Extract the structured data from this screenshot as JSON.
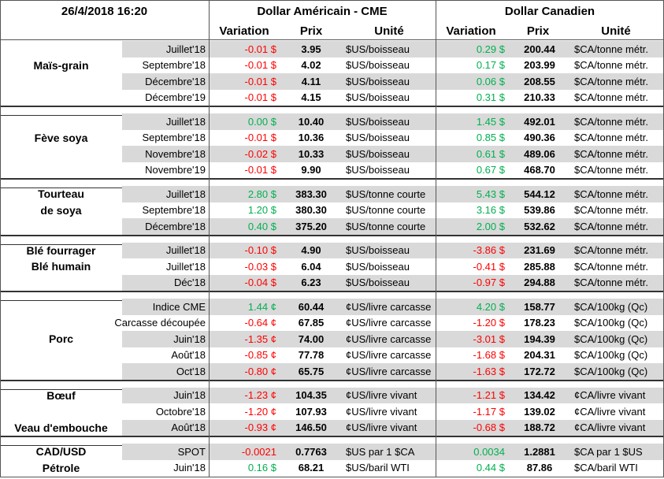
{
  "header": {
    "date": "26/4/2018 16:20",
    "usd_title": "Dollar Américain - CME",
    "cad_title": "Dollar Canadien",
    "usd_columns": [
      "Variation",
      "Prix",
      "Unité"
    ],
    "cad_columns": [
      "Variation",
      "Prix",
      "Unité"
    ]
  },
  "positive_color": "#00b050",
  "negative_color": "#ff0000",
  "groups": [
    {
      "rows": [
        {
          "cells": [
            "Juillet'18",
            "-0.01 $",
            "3.95",
            "$US/boisseau",
            "0.29 $",
            "200.44",
            "$CA/tonne métr."
          ]
        },
        {
          "label": "Maïs-grain",
          "cells": [
            "Septembre'18",
            "-0.01 $",
            "4.02",
            "$US/boisseau",
            "0.17 $",
            "203.99",
            "$CA/tonne métr."
          ]
        },
        {
          "cells": [
            "Décembre'18",
            "-0.01 $",
            "4.11",
            "$US/boisseau",
            "0.06 $",
            "208.55",
            "$CA/tonne métr."
          ]
        },
        {
          "cells": [
            "Décembre'19",
            "-0.01 $",
            "4.15",
            "$US/boisseau",
            "0.31 $",
            "210.33",
            "$CA/tonne métr."
          ]
        }
      ]
    },
    {
      "rows": [
        {
          "cells": [
            "Juillet'18",
            "0.00 $",
            "10.40",
            "$US/boisseau",
            "1.45 $",
            "492.01",
            "$CA/tonne métr."
          ]
        },
        {
          "label": "Fève soya",
          "cells": [
            "Septembre'18",
            "-0.01 $",
            "10.36",
            "$US/boisseau",
            "0.85 $",
            "490.36",
            "$CA/tonne métr."
          ]
        },
        {
          "cells": [
            "Novembre'18",
            "-0.02 $",
            "10.33",
            "$US/boisseau",
            "0.61 $",
            "489.06",
            "$CA/tonne métr."
          ]
        },
        {
          "cells": [
            "Novembre'19",
            "-0.01 $",
            "9.90",
            "$US/boisseau",
            "0.67 $",
            "468.70",
            "$CA/tonne métr."
          ]
        }
      ]
    },
    {
      "rows": [
        {
          "label": "Tourteau",
          "cells": [
            "Juillet'18",
            "2.80 $",
            "383.30",
            "$US/tonne courte",
            "5.43 $",
            "544.12",
            "$CA/tonne métr."
          ]
        },
        {
          "label": "de soya",
          "cells": [
            "Septembre'18",
            "1.20 $",
            "380.30",
            "$US/tonne courte",
            "3.16 $",
            "539.86",
            "$CA/tonne métr."
          ]
        },
        {
          "cells": [
            "Décembre'18",
            "0.40 $",
            "375.20",
            "$US/tonne courte",
            "2.00 $",
            "532.62",
            "$CA/tonne métr."
          ]
        }
      ]
    },
    {
      "rows": [
        {
          "label": "Blé fourrager",
          "cells": [
            "Juillet'18",
            "-0.10 $",
            "4.90",
            "$US/boisseau",
            "-3.86 $",
            "231.69",
            "$CA/tonne métr."
          ]
        },
        {
          "label": "Blé humain",
          "cells": [
            "Juillet'18",
            "-0.03 $",
            "6.04",
            "$US/boisseau",
            "-0.41 $",
            "285.88",
            "$CA/tonne métr."
          ]
        },
        {
          "cells": [
            "Déc'18",
            "-0.04 $",
            "6.23",
            "$US/boisseau",
            "-0.97 $",
            "294.88",
            "$CA/tonne métr."
          ]
        }
      ]
    },
    {
      "rows": [
        {
          "cells": [
            "Indice CME",
            "1.44 ¢",
            "60.44",
            "¢US/livre carcasse",
            "4.20 $",
            "158.77",
            "$CA/100kg (Qc)"
          ]
        },
        {
          "cells": [
            "Carcasse découpée",
            "-0.64 ¢",
            "67.85",
            "¢US/livre carcasse",
            "-1.20 $",
            "178.23",
            "$CA/100kg (Qc)"
          ]
        },
        {
          "label": "Porc",
          "cells": [
            "Juin'18",
            "-1.35 ¢",
            "74.00",
            "¢US/livre carcasse",
            "-3.01 $",
            "194.39",
            "$CA/100kg (Qc)"
          ]
        },
        {
          "cells": [
            "Août'18",
            "-0.85 ¢",
            "77.78",
            "¢US/livre carcasse",
            "-1.68 $",
            "204.31",
            "$CA/100kg (Qc)"
          ]
        },
        {
          "cells": [
            "Oct'18",
            "-0.80 ¢",
            "65.75",
            "¢US/livre carcasse",
            "-1.63 $",
            "172.72",
            "$CA/100kg (Qc)"
          ]
        }
      ]
    },
    {
      "rows": [
        {
          "label": "Bœuf",
          "cells": [
            "Juin'18",
            "-1.23 ¢",
            "104.35",
            "¢US/livre vivant",
            "-1.21 $",
            "134.42",
            "¢CA/livre vivant"
          ]
        },
        {
          "cells": [
            "Octobre'18",
            "-1.20 ¢",
            "107.93",
            "¢US/livre vivant",
            "-1.17 $",
            "139.02",
            "¢CA/livre vivant"
          ]
        },
        {
          "label": "Veau d'embouche",
          "cells": [
            "Août'18",
            "-0.93 ¢",
            "146.50",
            "¢US/livre vivant",
            "-0.68 $",
            "188.72",
            "¢CA/livre vivant"
          ]
        }
      ]
    },
    {
      "rows": [
        {
          "label": "CAD/USD",
          "cells": [
            "SPOT",
            "-0.0021",
            "0.7763",
            "$US par 1 $CA",
            "0.0034",
            "1.2881",
            "$CA par 1 $US"
          ]
        },
        {
          "label": "Pétrole",
          "cells": [
            "Juin'18",
            "0.16 $",
            "68.21",
            "$US/baril WTI",
            "0.44 $",
            "87.86",
            "$CA/baril WTI"
          ]
        }
      ]
    }
  ]
}
